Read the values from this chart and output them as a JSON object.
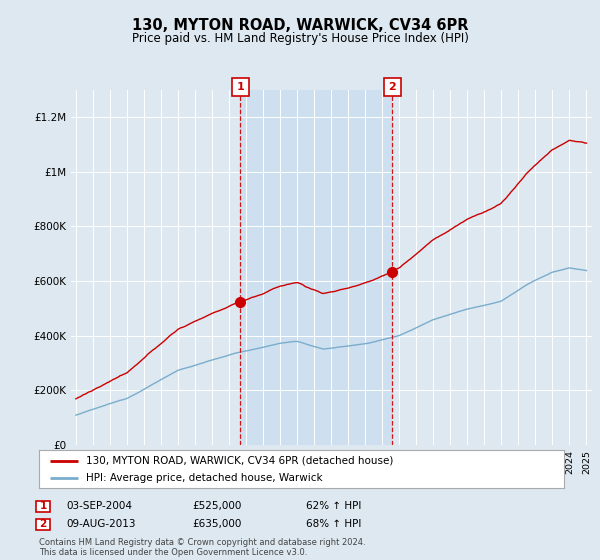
{
  "title": "130, MYTON ROAD, WARWICK, CV34 6PR",
  "subtitle": "Price paid vs. HM Land Registry's House Price Index (HPI)",
  "background_color": "#dde8f0",
  "plot_background": "#dde8f0",
  "shade_color": "#ccdff0",
  "ylim": [
    0,
    1300000
  ],
  "yticks": [
    0,
    200000,
    400000,
    600000,
    800000,
    1000000,
    1200000
  ],
  "ytick_labels": [
    "£0",
    "£200K",
    "£400K",
    "£600K",
    "£800K",
    "£1M",
    "£1.2M"
  ],
  "xlim_min": 1994.7,
  "xlim_max": 2025.3,
  "legend_line1": "130, MYTON ROAD, WARWICK, CV34 6PR (detached house)",
  "legend_line2": "HPI: Average price, detached house, Warwick",
  "sale1_label": "1",
  "sale1_date": "03-SEP-2004",
  "sale1_price": "£525,000",
  "sale1_hpi": "62% ↑ HPI",
  "sale1_x": 2004.67,
  "sale1_y": 525000,
  "sale2_label": "2",
  "sale2_date": "09-AUG-2013",
  "sale2_price": "£635,000",
  "sale2_hpi": "68% ↑ HPI",
  "sale2_x": 2013.6,
  "sale2_y": 635000,
  "footer": "Contains HM Land Registry data © Crown copyright and database right 2024.\nThis data is licensed under the Open Government Licence v3.0.",
  "red_line_color": "#cc0000",
  "blue_line_color": "#7aadcc",
  "vline_color": "#cc0000",
  "marker_color": "#cc0000",
  "label_box_color": "#cc0000"
}
